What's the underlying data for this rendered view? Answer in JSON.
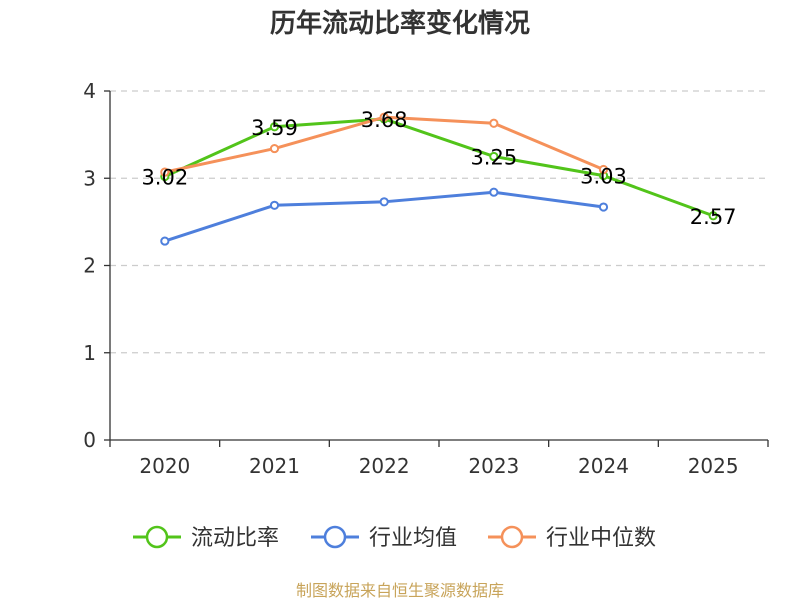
{
  "chart_data": {
    "type": "line",
    "title": "历年流动比率变化情况",
    "categories": [
      "2020",
      "2021",
      "2022",
      "2023",
      "2024",
      "2025"
    ],
    "ylim": [
      0,
      4
    ],
    "yticks": [
      "0",
      "1",
      "2",
      "3",
      "4"
    ],
    "grid": true,
    "legend_position": "bottom",
    "series": [
      {
        "name": "流动比率",
        "color": "#52c41a",
        "values": [
          3.02,
          3.59,
          3.68,
          3.25,
          3.03,
          2.57
        ],
        "labels": [
          "3.02",
          "3.59",
          "3.68",
          "3.25",
          "3.03",
          "2.57"
        ]
      },
      {
        "name": "行业均值",
        "color": "#4e7fdc",
        "values": [
          2.28,
          2.69,
          2.73,
          2.84,
          2.67,
          null
        ]
      },
      {
        "name": "行业中位数",
        "color": "#f5915a",
        "values": [
          3.07,
          3.34,
          3.7,
          3.63,
          3.1,
          null
        ]
      }
    ]
  },
  "source": {
    "text": "制图数据来自恒生聚源数据库",
    "color": "#c8a45a"
  }
}
